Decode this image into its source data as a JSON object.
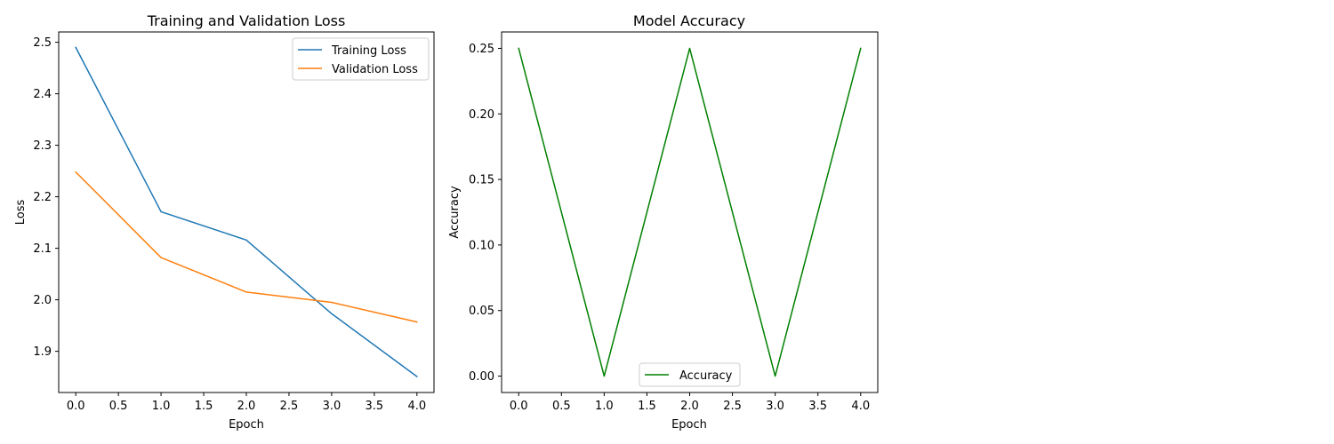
{
  "chart_data": [
    {
      "type": "line",
      "title": "Training and Validation Loss",
      "xlabel": "Epoch",
      "ylabel": "Loss",
      "xlim": [
        -0.2,
        4.2
      ],
      "ylim": [
        1.82,
        2.52
      ],
      "xticks": [
        0.0,
        0.5,
        1.0,
        1.5,
        2.0,
        2.5,
        3.0,
        3.5,
        4.0
      ],
      "xtick_labels": [
        "0.0",
        "0.5",
        "1.0",
        "1.5",
        "2.0",
        "2.5",
        "3.0",
        "3.5",
        "4.0"
      ],
      "yticks": [
        1.9,
        2.0,
        2.1,
        2.2,
        2.3,
        2.4,
        2.5
      ],
      "ytick_labels": [
        "1.9",
        "2.0",
        "2.1",
        "2.2",
        "2.3",
        "2.4",
        "2.5"
      ],
      "x": [
        0,
        1,
        2,
        3,
        4
      ],
      "series": [
        {
          "name": "Training Loss",
          "color": "#1f77b4",
          "values": [
            2.49,
            2.171,
            2.116,
            1.973,
            1.851
          ]
        },
        {
          "name": "Validation Loss",
          "color": "#ff7f0e",
          "values": [
            2.248,
            2.082,
            2.015,
            1.995,
            1.957
          ]
        }
      ],
      "legend": "upper right",
      "grid": false
    },
    {
      "type": "line",
      "title": "Model Accuracy",
      "xlabel": "Epoch",
      "ylabel": "Accuracy",
      "xlim": [
        -0.2,
        4.2
      ],
      "ylim": [
        -0.0125,
        0.2625
      ],
      "xticks": [
        0.0,
        0.5,
        1.0,
        1.5,
        2.0,
        2.5,
        3.0,
        3.5,
        4.0
      ],
      "xtick_labels": [
        "0.0",
        "0.5",
        "1.0",
        "1.5",
        "2.0",
        "2.5",
        "3.0",
        "3.5",
        "4.0"
      ],
      "yticks": [
        0.0,
        0.05,
        0.1,
        0.15,
        0.2,
        0.25
      ],
      "ytick_labels": [
        "0.00",
        "0.05",
        "0.10",
        "0.15",
        "0.20",
        "0.25"
      ],
      "x": [
        0,
        1,
        2,
        3,
        4
      ],
      "series": [
        {
          "name": "Accuracy",
          "color": "#008000",
          "values": [
            0.25,
            0.0,
            0.25,
            0.0,
            0.25
          ]
        }
      ],
      "legend": "lower center",
      "grid": false
    }
  ]
}
